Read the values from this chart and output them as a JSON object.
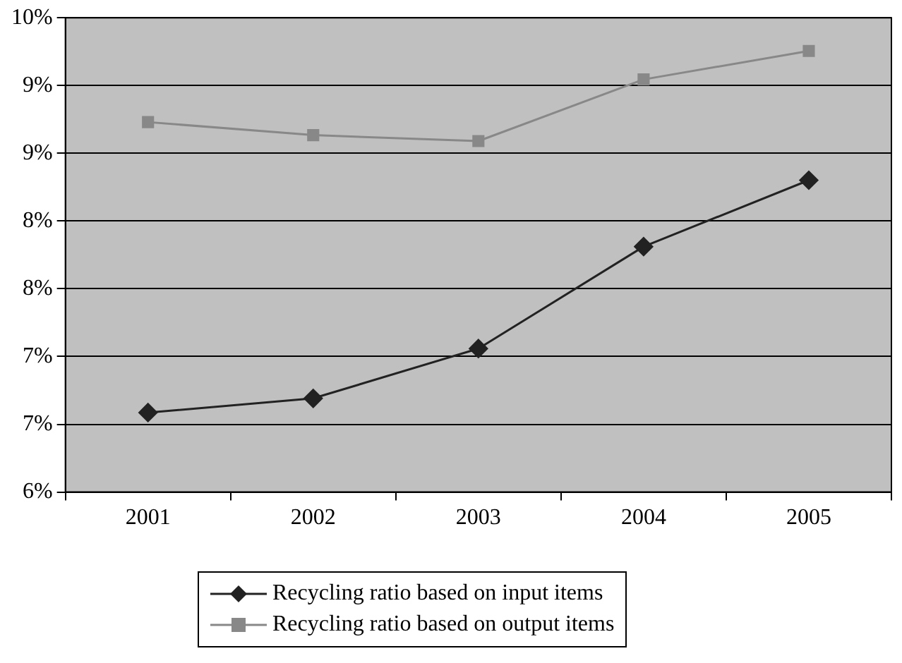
{
  "chart_data": {
    "type": "line",
    "categories": [
      "2001",
      "2002",
      "2003",
      "2004",
      "2005"
    ],
    "series": [
      {
        "name": "Recycling ratio based on input items",
        "color": "#222222",
        "marker": "diamond",
        "values": [
          6.67,
          6.79,
          7.21,
          8.07,
          8.63
        ]
      },
      {
        "name": "Recycling ratio based on output items",
        "color": "#888888",
        "marker": "square",
        "values": [
          9.12,
          9.01,
          8.96,
          9.48,
          9.72
        ]
      }
    ],
    "ylim": [
      6,
      10
    ],
    "yticks": [
      {
        "value": 6,
        "label": "6%"
      },
      {
        "value": 6.571,
        "label": "7%"
      },
      {
        "value": 7.143,
        "label": "7%"
      },
      {
        "value": 7.714,
        "label": "8%"
      },
      {
        "value": 8.286,
        "label": "8%"
      },
      {
        "value": 8.857,
        "label": "9%"
      },
      {
        "value": 9.429,
        "label": "9%"
      },
      {
        "value": 10,
        "label": "10%"
      }
    ],
    "grid": "y",
    "legend": "bottom",
    "line_style": "solid"
  }
}
